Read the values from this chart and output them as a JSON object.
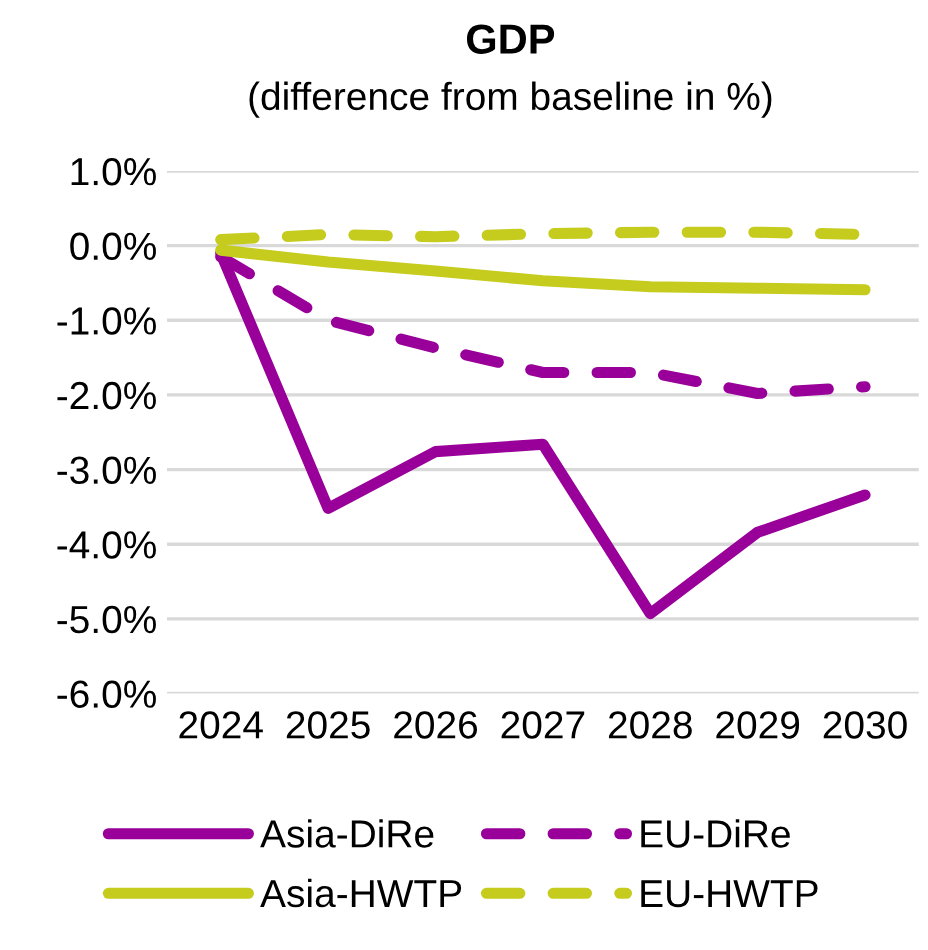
{
  "chart_data": {
    "type": "line",
    "title": "GDP",
    "subtitle": "(difference from baseline in %)",
    "categories": [
      "2024",
      "2025",
      "2026",
      "2027",
      "2028",
      "2029",
      "2030"
    ],
    "series": [
      {
        "name": "Asia-DiRe",
        "color": "#990099",
        "line_style": "solid",
        "values": [
          -0.1,
          -3.52,
          -2.76,
          -2.66,
          -4.93,
          -3.84,
          -3.34
        ]
      },
      {
        "name": "EU-DiRe",
        "color": "#990099",
        "line_style": "dashed",
        "values": [
          -0.15,
          -1.0,
          -1.37,
          -1.7,
          -1.7,
          -1.98,
          -1.89
        ]
      },
      {
        "name": "Asia-HWTP",
        "color": "#c5cc1e",
        "line_style": "solid",
        "values": [
          -0.06,
          -0.22,
          -0.34,
          -0.47,
          -0.55,
          -0.57,
          -0.59
        ]
      },
      {
        "name": "EU-HWTP",
        "color": "#c5cc1e",
        "line_style": "dashed",
        "values": [
          0.08,
          0.15,
          0.12,
          0.16,
          0.18,
          0.18,
          0.15
        ]
      }
    ],
    "ylim": [
      -6,
      1
    ],
    "yticks": [
      {
        "value": 1,
        "label": "1.0%"
      },
      {
        "value": 0,
        "label": "0.0%"
      },
      {
        "value": -1,
        "label": "-1.0%"
      },
      {
        "value": -2,
        "label": "-2.0%"
      },
      {
        "value": -3,
        "label": "-3.0%"
      },
      {
        "value": -4,
        "label": "-4.0%"
      },
      {
        "value": -5,
        "label": "-5.0%"
      },
      {
        "value": -6,
        "label": "-6.0%"
      }
    ],
    "grid": "y",
    "legend": "bottom",
    "marker": "none"
  }
}
